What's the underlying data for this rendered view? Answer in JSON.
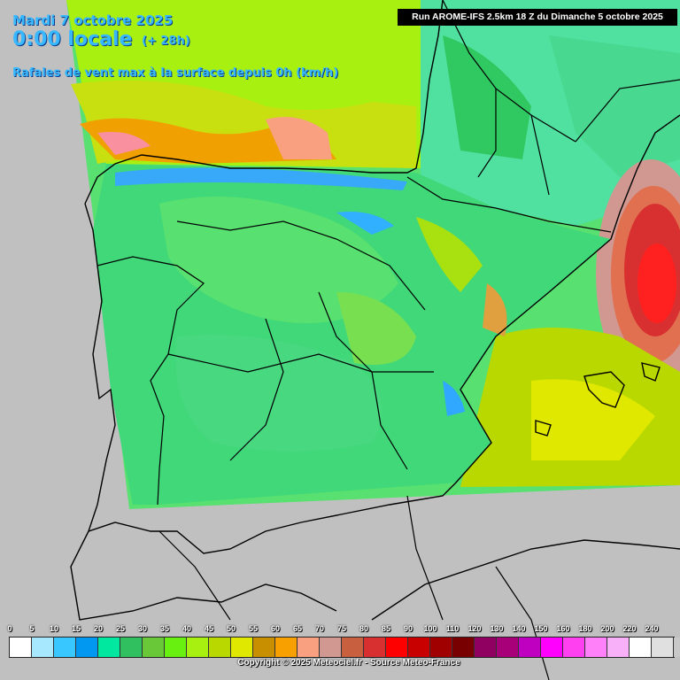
{
  "header": {
    "date": "Mardi 7 octobre 2025",
    "time": "0:00 locale",
    "lead": "(+ 28h)",
    "parameter": "Rafales de vent max à la surface depuis 0h (km/h)",
    "run": "Run AROME-IFS 2.5km 18 Z du Dimanche 5 octobre 2025"
  },
  "legend": {
    "ticks": [
      "0",
      "5",
      "10",
      "15",
      "20",
      "25",
      "30",
      "35",
      "40",
      "45",
      "50",
      "55",
      "60",
      "65",
      "70",
      "75",
      "80",
      "85",
      "90",
      "100",
      "110",
      "120",
      "130",
      "140",
      "150",
      "160",
      "180",
      "200",
      "220",
      "240"
    ],
    "colors": [
      "#ffffff",
      "#a8e8ff",
      "#38c8ff",
      "#0098f0",
      "#00e8a0",
      "#30c060",
      "#68c838",
      "#68f010",
      "#a8f010",
      "#b8d800",
      "#e0e800",
      "#c89000",
      "#f8a000",
      "#f8a080",
      "#d09890",
      "#c86040",
      "#d83030",
      "#ff0000",
      "#c80000",
      "#a00000",
      "#780000",
      "#900060",
      "#a80078",
      "#c000c0",
      "#ff00ff",
      "#ff40f0",
      "#ff80f8",
      "#f8b0f8",
      "#ffffff",
      "#e0e0e0",
      "#c8c8c8"
    ]
  },
  "footer": {
    "copyright": "Copyright © 2025 Meteociel.fr - Source Meteo-France"
  },
  "colors": {
    "land_background": "#c0c0c0",
    "title_text": "#38b8ff",
    "border_lines": "#000000"
  }
}
